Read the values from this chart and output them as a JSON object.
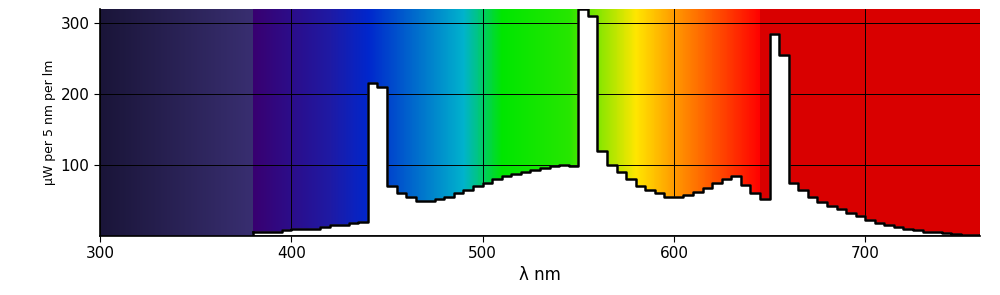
{
  "xlim": [
    300,
    760
  ],
  "ylim": [
    0,
    320
  ],
  "yticks": [
    100,
    200,
    300
  ],
  "xticks": [
    300,
    400,
    500,
    600,
    700
  ],
  "xlabel": "λ nm",
  "ylabel": "μW per 5 nm per lm",
  "background_color": "#ffffff",
  "spectrum_data": {
    "wavelengths": [
      380,
      385,
      390,
      395,
      400,
      405,
      410,
      415,
      420,
      425,
      430,
      435,
      440,
      445,
      450,
      455,
      460,
      465,
      470,
      475,
      480,
      485,
      490,
      495,
      500,
      505,
      510,
      515,
      520,
      525,
      530,
      535,
      540,
      545,
      550,
      555,
      560,
      565,
      570,
      575,
      580,
      585,
      590,
      595,
      600,
      605,
      610,
      615,
      620,
      625,
      630,
      635,
      640,
      645,
      650,
      655,
      660,
      665,
      670,
      675,
      680,
      685,
      690,
      695,
      700,
      705,
      710,
      715,
      720,
      725,
      730,
      735,
      740,
      745,
      750,
      755
    ],
    "values": [
      5,
      5,
      5,
      8,
      10,
      10,
      10,
      12,
      15,
      15,
      18,
      20,
      215,
      210,
      70,
      60,
      55,
      50,
      50,
      52,
      55,
      60,
      65,
      70,
      75,
      80,
      85,
      88,
      90,
      93,
      96,
      99,
      100,
      98,
      320,
      310,
      120,
      100,
      90,
      80,
      70,
      65,
      60,
      55,
      55,
      58,
      62,
      68,
      75,
      80,
      85,
      72,
      60,
      52,
      285,
      255,
      75,
      65,
      55,
      48,
      42,
      38,
      32,
      28,
      22,
      18,
      15,
      12,
      10,
      8,
      6,
      5,
      4,
      3,
      2,
      2
    ]
  },
  "line_color": "#000000",
  "line_width": 1.8,
  "grid_color": "#000000",
  "grid_linewidth": 0.7,
  "tick_labelsize": 11,
  "ylabel_fontsize": 9,
  "xlabel_fontsize": 12
}
